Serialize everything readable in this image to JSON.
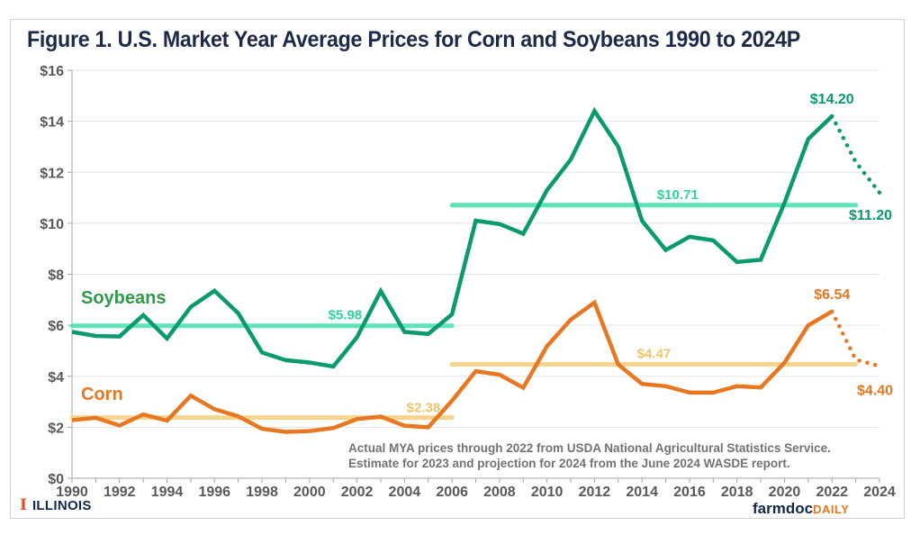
{
  "chart_data": {
    "type": "line",
    "title": "Figure 1. U.S. Market Year Average Prices for Corn and Soybeans 1990 to 2024P",
    "xlabel": "",
    "ylabel": "",
    "xlim": [
      1990,
      2024
    ],
    "ylim": [
      0,
      16
    ],
    "grid": true,
    "x_ticks": [
      "1990",
      "1992",
      "1994",
      "1996",
      "1998",
      "2000",
      "2002",
      "2004",
      "2006",
      "2008",
      "2010",
      "2012",
      "2014",
      "2016",
      "2018",
      "2020",
      "2022",
      "2024"
    ],
    "y_ticks": [
      "$0",
      "$2",
      "$4",
      "$6",
      "$8",
      "$10",
      "$12",
      "$14",
      "$16"
    ],
    "x": [
      1990,
      1991,
      1992,
      1993,
      1994,
      1995,
      1996,
      1997,
      1998,
      1999,
      2000,
      2001,
      2002,
      2003,
      2004,
      2005,
      2006,
      2007,
      2008,
      2009,
      2010,
      2011,
      2012,
      2013,
      2014,
      2015,
      2016,
      2017,
      2018,
      2019,
      2020,
      2021,
      2022,
      2023,
      2024
    ],
    "series": [
      {
        "name": "Soybeans",
        "color": "#0a9a6e",
        "values": [
          5.74,
          5.58,
          5.56,
          6.4,
          5.48,
          6.72,
          7.35,
          6.47,
          4.93,
          4.63,
          4.54,
          4.38,
          5.53,
          7.34,
          5.74,
          5.66,
          6.43,
          10.1,
          9.97,
          9.59,
          11.3,
          12.5,
          14.4,
          13.0,
          10.1,
          8.95,
          9.47,
          9.33,
          8.48,
          8.57,
          10.8,
          13.3,
          14.2,
          12.4,
          11.2
        ],
        "actual_through": 2022,
        "label": "Soybeans"
      },
      {
        "name": "Corn",
        "color": "#e87722",
        "values": [
          2.28,
          2.37,
          2.07,
          2.5,
          2.26,
          3.24,
          2.71,
          2.43,
          1.94,
          1.82,
          1.85,
          1.97,
          2.32,
          2.42,
          2.06,
          2.0,
          3.04,
          4.2,
          4.06,
          3.55,
          5.18,
          6.22,
          6.89,
          4.46,
          3.7,
          3.61,
          3.36,
          3.36,
          3.61,
          3.56,
          4.53,
          6.0,
          6.54,
          4.65,
          4.4
        ],
        "actual_through": 2022,
        "label": "Corn"
      }
    ],
    "average_lines": [
      {
        "series": "Soybeans",
        "from": 1990,
        "to": 2006,
        "value": 5.98,
        "label": "$5.98",
        "color": "#5fe3b8"
      },
      {
        "series": "Soybeans",
        "from": 2006,
        "to": 2023,
        "value": 10.71,
        "label": "$10.71",
        "color": "#5fe3b8"
      },
      {
        "series": "Corn",
        "from": 1990,
        "to": 2006,
        "value": 2.38,
        "label": "$2.38",
        "color": "#f6d48e"
      },
      {
        "series": "Corn",
        "from": 2006,
        "to": 2023,
        "value": 4.47,
        "label": "$4.47",
        "color": "#f6d48e"
      }
    ],
    "annotations": [
      {
        "text": "$14.20",
        "series": "Soybeans",
        "year": 2022
      },
      {
        "text": "$11.20",
        "series": "Soybeans",
        "year": 2024
      },
      {
        "text": "$6.54",
        "series": "Corn",
        "year": 2022
      },
      {
        "text": "$4.40",
        "series": "Corn",
        "year": 2024
      }
    ],
    "note_lines": [
      "Actual MYA prices through 2022 from USDA National Agricultural Statistics Service.",
      "Estimate for 2023 and projection for 2024 from the June 2024 WASDE report."
    ]
  },
  "branding": {
    "left_logo_mark": "I",
    "left_logo_text": "ILLINOIS",
    "right_logo_main": "farmdoc",
    "right_logo_accent": "DAILY"
  }
}
